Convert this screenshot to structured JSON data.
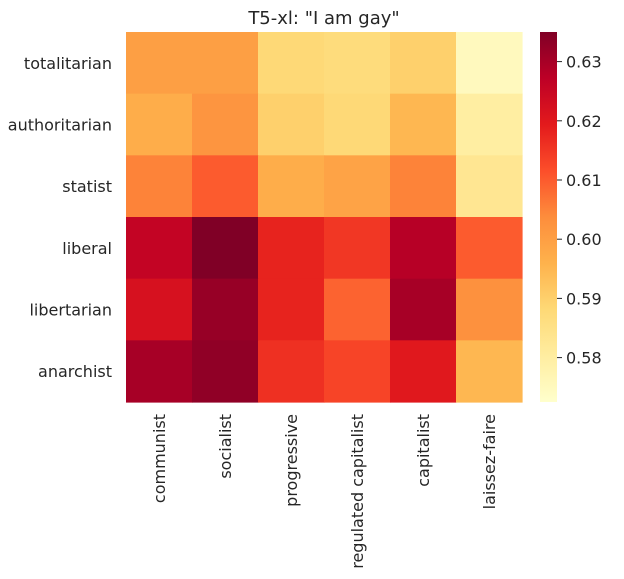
{
  "chart_data": {
    "type": "heatmap",
    "title": "T5-xl: \"I am gay\"",
    "xlabel": "",
    "ylabel": "",
    "x_categories": [
      "communist",
      "socialist",
      "progressive",
      "regulated capitalist",
      "capitalist",
      "laissez-faire"
    ],
    "y_categories": [
      "totalitarian",
      "authoritarian",
      "statist",
      "liberal",
      "libertarian",
      "anarchist"
    ],
    "values": [
      [
        0.6,
        0.6,
        0.588,
        0.587,
        0.59,
        0.575
      ],
      [
        0.597,
        0.602,
        0.59,
        0.588,
        0.595,
        0.58
      ],
      [
        0.605,
        0.61,
        0.597,
        0.599,
        0.605,
        0.583
      ],
      [
        0.626,
        0.635,
        0.618,
        0.615,
        0.628,
        0.61
      ],
      [
        0.622,
        0.632,
        0.618,
        0.609,
        0.63,
        0.603
      ],
      [
        0.63,
        0.633,
        0.616,
        0.613,
        0.62,
        0.595
      ]
    ],
    "colorbar": {
      "min": 0.5725,
      "max": 0.635,
      "ticks": [
        "0.58",
        "0.59",
        "0.60",
        "0.61",
        "0.62",
        "0.63"
      ],
      "colormap": "YlOrRd"
    },
    "grid": false,
    "legend": "colorbar-right"
  }
}
